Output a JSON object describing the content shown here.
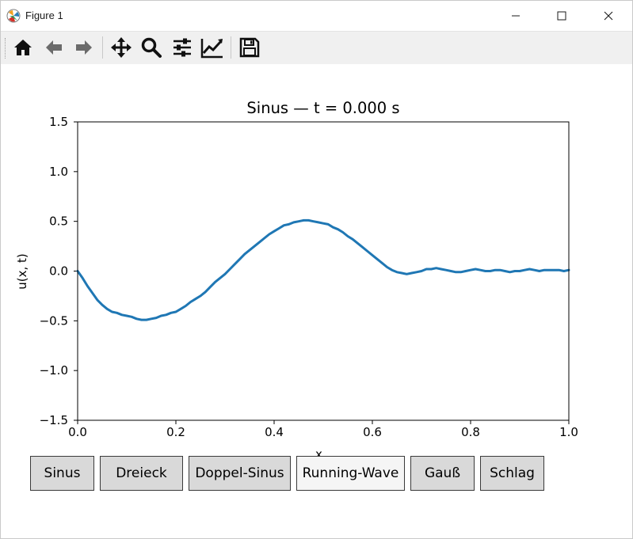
{
  "window": {
    "title": "Figure 1"
  },
  "toolbar": {
    "icons": [
      "home-icon",
      "back-arrow-icon",
      "forward-arrow-icon",
      "pan-icon",
      "zoom-icon",
      "subplots-config-icon",
      "edit-axes-icon",
      "save-icon"
    ]
  },
  "chart_data": {
    "type": "line",
    "title": "Sinus — t = 0.000 s",
    "xlabel": "x",
    "ylabel": "u(x, t)",
    "xlim": [
      0.0,
      1.0
    ],
    "ylim": [
      -1.5,
      1.5
    ],
    "xticks": [
      "0.0",
      "0.2",
      "0.4",
      "0.6",
      "0.8",
      "1.0"
    ],
    "yticks": [
      "1.5",
      "1.0",
      "0.5",
      "0.0",
      "−0.5",
      "−1.0",
      "−1.5"
    ],
    "line_color": "#1f77b4",
    "grid": false,
    "series": [
      {
        "x": [
          0.0,
          0.01,
          0.02,
          0.03,
          0.04,
          0.05,
          0.06,
          0.07,
          0.08,
          0.09,
          0.1,
          0.11,
          0.12,
          0.13,
          0.14,
          0.15,
          0.16,
          0.17,
          0.18,
          0.19,
          0.2,
          0.21,
          0.22,
          0.23,
          0.24,
          0.25,
          0.26,
          0.27,
          0.28,
          0.29,
          0.3,
          0.31,
          0.32,
          0.33,
          0.34,
          0.35,
          0.36,
          0.37,
          0.38,
          0.39,
          0.4,
          0.41,
          0.42,
          0.43,
          0.44,
          0.45,
          0.46,
          0.47,
          0.48,
          0.49,
          0.5,
          0.51,
          0.52,
          0.53,
          0.54,
          0.55,
          0.56,
          0.57,
          0.58,
          0.59,
          0.6,
          0.61,
          0.62,
          0.63,
          0.64,
          0.65,
          0.66,
          0.67,
          0.68,
          0.69,
          0.7,
          0.71,
          0.72,
          0.73,
          0.74,
          0.75,
          0.76,
          0.77,
          0.78,
          0.79,
          0.8,
          0.81,
          0.82,
          0.83,
          0.84,
          0.85,
          0.86,
          0.87,
          0.88,
          0.89,
          0.9,
          0.91,
          0.92,
          0.93,
          0.94,
          0.95,
          0.96,
          0.97,
          0.98,
          0.99,
          1.0
        ],
        "values": [
          0.0,
          -0.07,
          -0.15,
          -0.22,
          -0.29,
          -0.34,
          -0.38,
          -0.41,
          -0.42,
          -0.44,
          -0.45,
          -0.46,
          -0.48,
          -0.49,
          -0.49,
          -0.48,
          -0.47,
          -0.45,
          -0.44,
          -0.42,
          -0.41,
          -0.38,
          -0.35,
          -0.31,
          -0.28,
          -0.25,
          -0.21,
          -0.16,
          -0.11,
          -0.07,
          -0.03,
          0.02,
          0.07,
          0.12,
          0.17,
          0.21,
          0.25,
          0.29,
          0.33,
          0.37,
          0.4,
          0.43,
          0.46,
          0.47,
          0.49,
          0.5,
          0.51,
          0.51,
          0.5,
          0.49,
          0.48,
          0.47,
          0.44,
          0.42,
          0.39,
          0.35,
          0.32,
          0.28,
          0.24,
          0.2,
          0.16,
          0.12,
          0.08,
          0.04,
          0.01,
          -0.01,
          -0.02,
          -0.03,
          -0.02,
          -0.01,
          0.0,
          0.02,
          0.02,
          0.03,
          0.02,
          0.01,
          0.0,
          -0.01,
          -0.01,
          0.0,
          0.01,
          0.02,
          0.01,
          0.0,
          0.0,
          0.01,
          0.01,
          0.0,
          -0.01,
          0.0,
          0.0,
          0.01,
          0.02,
          0.01,
          0.0,
          0.01,
          0.01,
          0.01,
          0.01,
          0.0,
          0.01
        ]
      }
    ]
  },
  "buttons": [
    "Sinus",
    "Dreieck",
    "Doppel-Sinus",
    "Running-Wave",
    "Gauß",
    "Schlag"
  ]
}
